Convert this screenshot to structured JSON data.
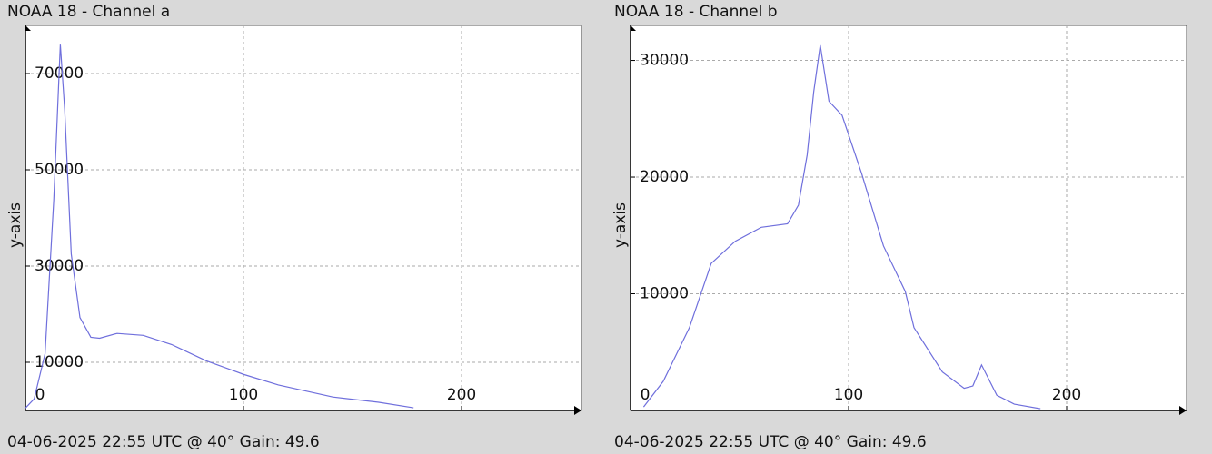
{
  "chart_data": [
    {
      "type": "line",
      "title": "NOAA 18 - Channel a",
      "ylabel": "y-axis",
      "footer": "04-06-2025 22:55 UTC @ 40° Gain: 49.6",
      "x": [
        0,
        4,
        9,
        13,
        16,
        18,
        21,
        25,
        30,
        34,
        42,
        54,
        67,
        83,
        100,
        116,
        141,
        162,
        178
      ],
      "values": [
        500,
        2400,
        11800,
        43800,
        76000,
        62500,
        32500,
        19300,
        15200,
        15000,
        16000,
        15600,
        13700,
        10300,
        7500,
        5300,
        2800,
        1700,
        560
      ],
      "color": "#6f6fdc",
      "xlim": [
        0,
        255
      ],
      "ylim": [
        0,
        80000
      ],
      "xticks": [
        0,
        100,
        200
      ],
      "yticks": [
        10000,
        30000,
        50000,
        70000
      ],
      "grid": true
    },
    {
      "type": "line",
      "title": "NOAA 18 - Channel b",
      "ylabel": "y-axis",
      "footer": "04-06-2025 22:55 UTC @ 40° Gain: 49.6",
      "x": [
        6,
        15,
        27,
        37,
        48,
        60,
        72,
        77,
        81,
        84,
        87,
        91,
        97,
        106,
        116,
        126,
        130,
        143,
        153,
        157,
        161,
        168,
        176,
        188
      ],
      "values": [
        300,
        2500,
        7100,
        12600,
        14500,
        15700,
        16000,
        17600,
        21900,
        27300,
        31300,
        26500,
        25300,
        20300,
        14100,
        10200,
        7100,
        3300,
        1900,
        2100,
        3900,
        1300,
        540,
        150
      ],
      "color": "#6f6fdc",
      "xlim": [
        0,
        255
      ],
      "ylim": [
        0,
        33000
      ],
      "xticks": [
        0,
        100,
        200
      ],
      "yticks": [
        10000,
        20000,
        30000
      ],
      "grid": true
    }
  ]
}
